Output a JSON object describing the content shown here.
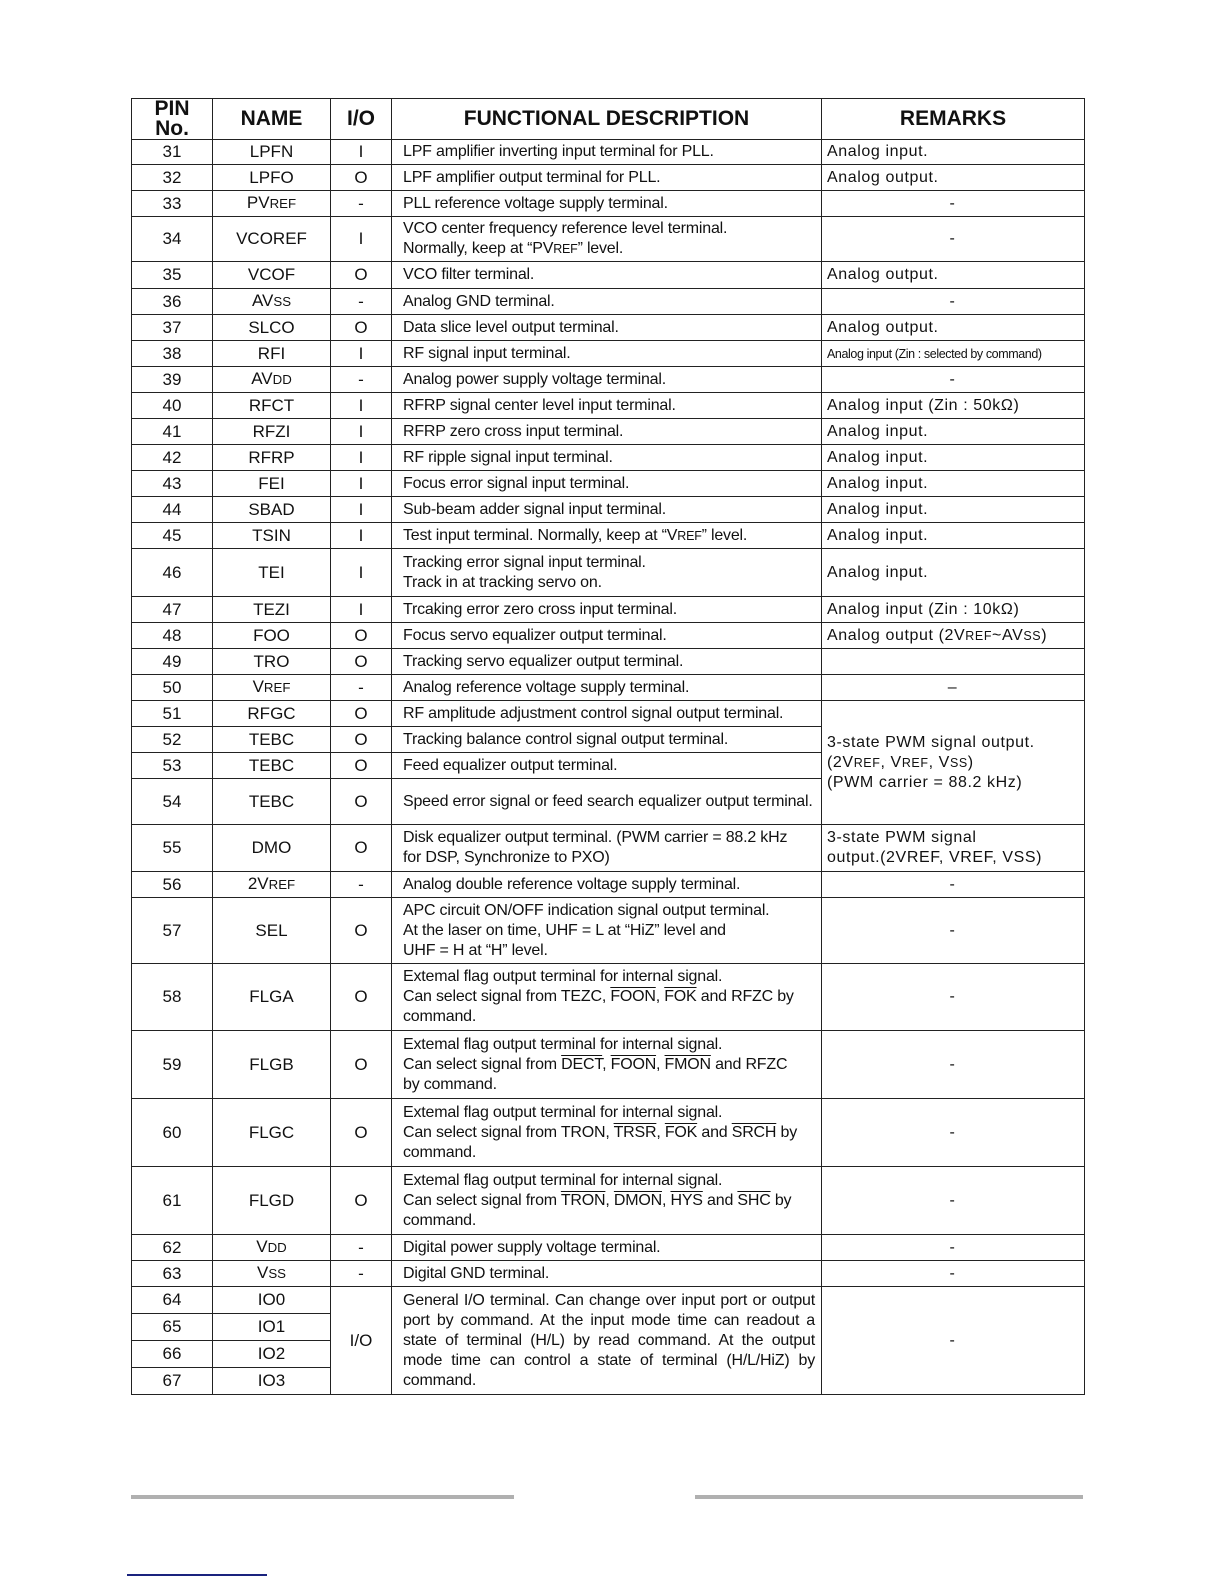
{
  "headers": {
    "pin": "PIN No.",
    "name": "NAME",
    "io": "I/O",
    "desc": "FUNCTIONAL DESCRIPTION",
    "remarks": "REMARKS"
  },
  "rows": [
    {
      "pin": "31",
      "name": [
        "LPFN"
      ],
      "io": "I",
      "desc": [
        [
          "LPF amplifier inverting input terminal for PLL."
        ]
      ],
      "remark": [
        [
          "Analog input."
        ]
      ]
    },
    {
      "pin": "32",
      "name": [
        "LPFO"
      ],
      "io": "O",
      "desc": [
        [
          "LPF amplifier output terminal for PLL."
        ]
      ],
      "remark": [
        [
          "Analog output."
        ]
      ]
    },
    {
      "pin": "33",
      "name": [
        "PV",
        {
          "sc": "REF"
        }
      ],
      "io": "-",
      "desc": [
        [
          "PLL reference voltage supply terminal."
        ]
      ],
      "remark": [
        [
          "-"
        ]
      ],
      "rc": true
    },
    {
      "pin": "34",
      "name": [
        "VCOREF"
      ],
      "io": "I",
      "desc": [
        [
          "VCO center frequency reference level terminal."
        ],
        [
          "Normally, keep at “PV",
          {
            "sc": "REF"
          },
          "” level."
        ]
      ],
      "remark": [
        [
          "-"
        ]
      ],
      "rc": true
    },
    {
      "pin": "35",
      "name": [
        "VCOF"
      ],
      "io": "O",
      "desc": [
        [
          "VCO filter terminal."
        ]
      ],
      "remark": [
        [
          "Analog output."
        ]
      ]
    },
    {
      "pin": "36",
      "name": [
        "AV",
        {
          "sc": "SS"
        }
      ],
      "io": "-",
      "desc": [
        [
          "Analog GND terminal."
        ]
      ],
      "remark": [
        [
          "-"
        ]
      ],
      "rc": true
    },
    {
      "pin": "37",
      "name": [
        "SLCO"
      ],
      "io": "O",
      "desc": [
        [
          "Data slice level output terminal."
        ]
      ],
      "remark": [
        [
          "Analog output."
        ]
      ]
    },
    {
      "pin": "38",
      "name": [
        "RFI"
      ],
      "io": "I",
      "desc": [
        [
          "RF signal input terminal."
        ]
      ],
      "remark": [
        [
          "Analog input (Zin : selected by command)"
        ]
      ],
      "tiny": true
    },
    {
      "pin": "39",
      "name": [
        "AV",
        {
          "sc": "DD"
        }
      ],
      "io": "-",
      "desc": [
        [
          "Analog power supply voltage terminal."
        ]
      ],
      "remark": [
        [
          "-"
        ]
      ],
      "rc": true
    },
    {
      "pin": "40",
      "name": [
        "RFCT"
      ],
      "io": "I",
      "desc": [
        [
          "RFRP signal center level input terminal."
        ]
      ],
      "remark": [
        [
          "Analog input (Zin : 50kΩ)"
        ]
      ]
    },
    {
      "pin": "41",
      "name": [
        "RFZI"
      ],
      "io": "I",
      "desc": [
        [
          "RFRP zero cross input terminal."
        ]
      ],
      "remark": [
        [
          "Analog input."
        ]
      ]
    },
    {
      "pin": "42",
      "name": [
        "RFRP"
      ],
      "io": "I",
      "desc": [
        [
          "RF ripple signal input terminal."
        ]
      ],
      "remark": [
        [
          "Analog input."
        ]
      ]
    },
    {
      "pin": "43",
      "name": [
        "FEI"
      ],
      "io": "I",
      "desc": [
        [
          "Focus error signal input terminal."
        ]
      ],
      "remark": [
        [
          "Analog input."
        ]
      ]
    },
    {
      "pin": "44",
      "name": [
        "SBAD"
      ],
      "io": "I",
      "desc": [
        [
          "Sub-beam adder signal input terminal."
        ]
      ],
      "remark": [
        [
          "Analog input."
        ]
      ]
    },
    {
      "pin": "45",
      "name": [
        "TSIN"
      ],
      "io": "I",
      "desc": [
        [
          "Test input terminal. Normally, keep at “V",
          {
            "sc": "REF"
          },
          "” level."
        ]
      ],
      "remark": [
        [
          "Analog input."
        ]
      ]
    },
    {
      "pin": "46",
      "name": [
        "TEI"
      ],
      "io": "I",
      "desc": [
        [
          "Tracking error signal input terminal."
        ],
        [
          "Track in at tracking servo on."
        ]
      ],
      "remark": [
        [
          "Analog input."
        ]
      ]
    },
    {
      "pin": "47",
      "name": [
        "TEZI"
      ],
      "io": "I",
      "desc": [
        [
          "Trcaking error zero cross input terminal."
        ]
      ],
      "remark": [
        [
          "Analog input (Zin : 10kΩ)"
        ]
      ]
    },
    {
      "pin": "48",
      "name": [
        "FOO"
      ],
      "io": "O",
      "desc": [
        [
          "Focus servo equalizer output terminal."
        ]
      ],
      "remark": [
        [
          "Analog output (2V",
          {
            "sc": "REF"
          },
          "~AV",
          {
            "sc": "SS"
          },
          ")"
        ]
      ]
    },
    {
      "pin": "49",
      "name": [
        "TRO"
      ],
      "io": "O",
      "desc": [
        [
          "Tracking servo equalizer output terminal."
        ]
      ],
      "remark": [
        [
          ""
        ]
      ]
    },
    {
      "pin": "50",
      "name": [
        "V",
        {
          "sc": "REF"
        }
      ],
      "io": "-",
      "desc": [
        [
          "Analog reference voltage supply terminal."
        ]
      ],
      "remark": [
        [
          "–"
        ]
      ],
      "rc": true
    },
    {
      "pin": "51",
      "name": [
        "RFGC"
      ],
      "io": "O",
      "desc": [
        [
          "RF amplitude adjustment control signal output terminal."
        ]
      ],
      "remark": [
        [
          "3-state PWM signal output."
        ],
        [
          "(2V",
          {
            "sc": "REF"
          },
          ", V",
          {
            "sc": "REF"
          },
          ", V",
          {
            "sc": "SS"
          },
          ")"
        ],
        [
          "(PWM carrier = 88.2 kHz)"
        ]
      ],
      "rspan": 4
    },
    {
      "pin": "52",
      "name": [
        "TEBC"
      ],
      "io": "O",
      "desc": [
        [
          "Tracking balance control signal output terminal."
        ]
      ]
    },
    {
      "pin": "53",
      "name": [
        "TEBC"
      ],
      "io": "O",
      "desc": [
        [
          "Feed equalizer output terminal."
        ]
      ]
    },
    {
      "pin": "54",
      "name": [
        "TEBC"
      ],
      "io": "O",
      "desc": [
        [
          "Speed error signal or feed search equalizer output terminal."
        ]
      ]
    },
    {
      "pin": "55",
      "name": [
        "DMO"
      ],
      "io": "O",
      "desc": [
        [
          "Disk equalizer output terminal. (PWM carrier = 88.2 kHz"
        ],
        [
          "for DSP, Synchronize to PXO)"
        ]
      ],
      "remark": [
        [
          "3-state PWM signal"
        ],
        [
          "output.(2VREF, VREF, VSS)"
        ]
      ]
    },
    {
      "pin": "56",
      "name": [
        "2V",
        {
          "sc": "REF"
        }
      ],
      "io": "-",
      "desc": [
        [
          "Analog double reference voltage supply terminal."
        ]
      ],
      "remark": [
        [
          "-"
        ]
      ],
      "rc": true
    },
    {
      "pin": "57",
      "name": [
        "SEL"
      ],
      "io": "O",
      "desc": [
        [
          "APC circuit ON/OFF indication signal output terminal."
        ],
        [
          "At the laser on time, UHF = L at “HiZ” level and"
        ],
        [
          "UHF = H at “H” level."
        ]
      ],
      "remark": [
        [
          "-"
        ]
      ],
      "rc": true
    },
    {
      "pin": "58",
      "name": [
        "FLGA"
      ],
      "io": "O",
      "desc": [
        [
          "Extemal flag output terminal for internal  signal."
        ],
        [
          "Can select signal from TEZC, ",
          {
            "ov": "FOON"
          },
          ", ",
          {
            "ov": "FOK"
          },
          " and RFZC by"
        ],
        [
          "command."
        ]
      ],
      "remark": [
        [
          "-"
        ]
      ],
      "rc": true
    },
    {
      "pin": "59",
      "name": [
        "FLGB"
      ],
      "io": "O",
      "desc": [
        [
          "Extemal flag output terminal for internal  signal."
        ],
        [
          "Can select signal from ",
          {
            "ov": "DECT"
          },
          ", ",
          {
            "ov": "FOON"
          },
          ", ",
          {
            "ov": "FMON"
          },
          " and RFZC"
        ],
        [
          "by command."
        ]
      ],
      "remark": [
        [
          "-"
        ]
      ],
      "rc": true
    },
    {
      "pin": "60",
      "name": [
        "FLGC"
      ],
      "io": "O",
      "desc": [
        [
          "Extemal flag output terminal for internal  signal."
        ],
        [
          "Can select signal from TRON, ",
          {
            "ov": "TRSR"
          },
          ", ",
          {
            "ov": "FOK"
          },
          " and ",
          {
            "ov": "SRCH"
          },
          " by"
        ],
        [
          "command."
        ]
      ],
      "remark": [
        [
          "-"
        ]
      ],
      "rc": true
    },
    {
      "pin": "61",
      "name": [
        "FLGD"
      ],
      "io": "O",
      "desc": [
        [
          "Extemal flag output terminal for internal  signal."
        ],
        [
          "Can select signal from ",
          {
            "ov": "TRON"
          },
          ", ",
          {
            "ov": "DMON"
          },
          ", ",
          {
            "ov": "HYS"
          },
          " and ",
          {
            "ov": "SHC"
          },
          " by"
        ],
        [
          "command."
        ]
      ],
      "remark": [
        [
          "-"
        ]
      ],
      "rc": true
    },
    {
      "pin": "62",
      "name": [
        "V",
        {
          "sc": "DD"
        }
      ],
      "io": "-",
      "desc": [
        [
          "Digital power supply voltage terminal."
        ]
      ],
      "remark": [
        [
          "-"
        ]
      ],
      "rc": true
    },
    {
      "pin": "63",
      "name": [
        "V",
        {
          "sc": "SS"
        }
      ],
      "io": "-",
      "desc": [
        [
          "Digital GND terminal."
        ]
      ],
      "remark": [
        [
          "-"
        ]
      ],
      "rc": true
    },
    {
      "pin": "64",
      "name": [
        "IO0"
      ],
      "io": "I/O",
      "iospan": 4,
      "desc": [
        [
          "General I/O terminal. Can change over input port or output port by command. At the input mode time can readout a state of terminal (H/L) by read command. At the output mode time can control a state of terminal (H/L/HiZ) by command."
        ]
      ],
      "dspan": 4,
      "remark": [
        [
          "-"
        ]
      ],
      "rc": true,
      "rspan": 4
    },
    {
      "pin": "65",
      "name": [
        "IO1"
      ]
    },
    {
      "pin": "66",
      "name": [
        "IO2"
      ]
    },
    {
      "pin": "67",
      "name": [
        "IO3"
      ]
    }
  ]
}
